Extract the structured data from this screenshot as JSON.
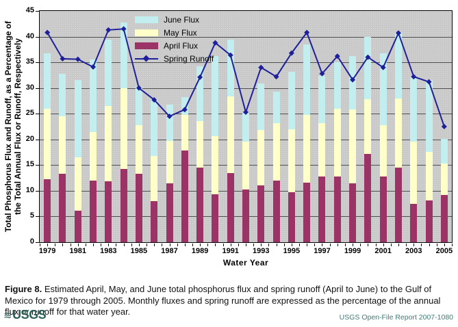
{
  "figure": {
    "caption_label": "Figure 8.",
    "caption_text": "Estimated April, May, and June total phosphorus flux and spring runoff (April to June) to the Gulf of Mexico for 1979 through 2005. Monthly fluxes and spring runoff are expressed as the percentage of the annual flux or runoff for that water year."
  },
  "footer": {
    "logo_wave": "≋",
    "logo_text": "USGS",
    "logo_color": "#2c5f5a",
    "report_label": "USGS Open-File Report 2007-1080",
    "report_color": "#3f7a76"
  },
  "chart_data": {
    "type": "bar",
    "subtype": "stacked-bars-with-line-overlay",
    "title": "",
    "xlabel": "Water Year",
    "ylabel_line1": "Total Phosphorus Flux and Runoff, as a Percentage of",
    "ylabel_line2": "the Total Annual Flux or Runoff, Respectively",
    "ylim": [
      0,
      45
    ],
    "yticks": [
      0,
      5,
      10,
      15,
      20,
      25,
      30,
      35,
      40,
      45
    ],
    "grid": true,
    "plot_bg": "#c9c9c9",
    "gridline_color": "#4d4d4d",
    "categories": [
      "1979",
      "1980",
      "1981",
      "1982",
      "1983",
      "1984",
      "1985",
      "1986",
      "1987",
      "1988",
      "1989",
      "1990",
      "1991",
      "1992",
      "1993",
      "1994",
      "1995",
      "1996",
      "1997",
      "1998",
      "1999",
      "2000",
      "2001",
      "2002",
      "2003",
      "2004",
      "2005"
    ],
    "xtick_labels": [
      "1979",
      "1981",
      "1983",
      "1985",
      "1987",
      "1989",
      "1991",
      "1993",
      "1995",
      "1997",
      "1999",
      "2001",
      "2003",
      "2005"
    ],
    "series": [
      {
        "name": "April Flux",
        "type": "bar-stack-bottom",
        "color": "#9c3366",
        "values": [
          12.2,
          13.3,
          6.1,
          12.0,
          11.9,
          14.3,
          13.3,
          8.0,
          11.5,
          17.8,
          14.5,
          9.3,
          13.5,
          10.2,
          11.1,
          12.0,
          9.7,
          11.6,
          12.8,
          12.8,
          11.5,
          17.2,
          12.8,
          14.5,
          7.5,
          8.1,
          9.2
        ]
      },
      {
        "name": "May Flux",
        "type": "bar-stack-middle",
        "color": "#ffffc9",
        "values": [
          13.8,
          11.2,
          10.4,
          9.4,
          14.6,
          15.6,
          9.5,
          8.8,
          8.2,
          7.0,
          9.1,
          11.3,
          14.8,
          9.4,
          10.7,
          11.1,
          12.3,
          13.1,
          10.4,
          13.1,
          14.3,
          10.6,
          10.0,
          13.5,
          12.1,
          9.5,
          6.1
        ]
      },
      {
        "name": "June Flux",
        "type": "bar-stack-top",
        "color": "#c2eef0",
        "values": [
          10.7,
          8.2,
          15.1,
          14.1,
          12.9,
          12.8,
          7.4,
          11.2,
          7.1,
          3.4,
          10.6,
          15.6,
          11.1,
          5.5,
          9.1,
          6.2,
          11.1,
          13.8,
          9.2,
          9.1,
          10.4,
          12.2,
          13.9,
          12.9,
          12.5,
          13.9,
          4.8
        ]
      },
      {
        "name": "Spring Runoff",
        "type": "line",
        "marker": "diamond",
        "color": "#1f1f99",
        "values": [
          40.8,
          35.7,
          35.6,
          34.1,
          41.3,
          41.5,
          30.0,
          27.7,
          24.5,
          25.8,
          32.1,
          38.8,
          36.4,
          25.3,
          34.0,
          32.2,
          36.8,
          40.8,
          32.8,
          36.2,
          31.6,
          36.0,
          34.0,
          40.7,
          32.2,
          31.2,
          22.5
        ]
      }
    ],
    "legend": {
      "position": "inside-top-left",
      "entries": [
        {
          "label": "June Flux",
          "kind": "rect",
          "color": "#c2eef0"
        },
        {
          "label": "May Flux",
          "kind": "rect",
          "color": "#ffffc9"
        },
        {
          "label": "April Flux",
          "kind": "rect",
          "color": "#9c3366"
        },
        {
          "label": "Spring Runoff",
          "kind": "line-diamond",
          "color": "#1f1f99"
        }
      ]
    }
  }
}
